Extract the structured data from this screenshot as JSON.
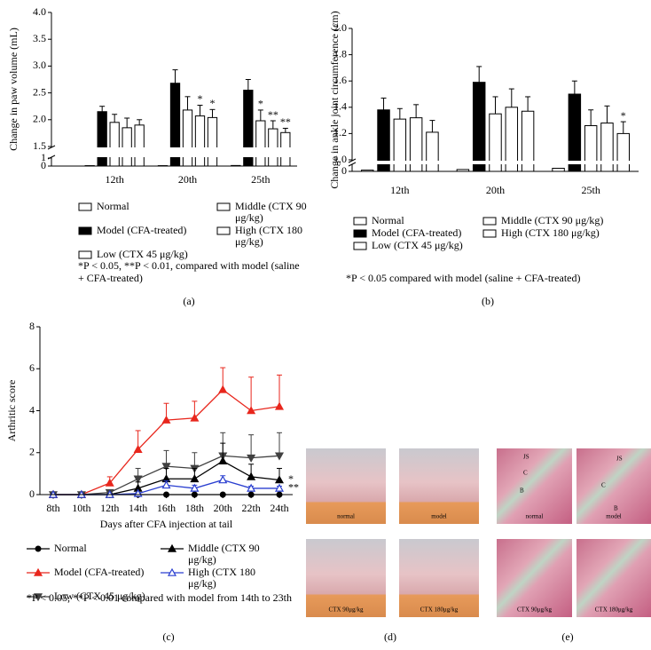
{
  "chart_data": [
    {
      "type": "bar",
      "panel": "(a)",
      "y_label": "Change in paw volume (mL)",
      "categories": [
        "12th",
        "20th",
        "25th"
      ],
      "series": [
        {
          "name": "Normal",
          "color": "#ffffff",
          "values": [
            0.05,
            0.05,
            0.07
          ]
        },
        {
          "name": "Model (CFA-treated)",
          "color": "#000000",
          "values": [
            2.15,
            2.68,
            2.55
          ],
          "errors": [
            0.1,
            0.25,
            0.2
          ]
        },
        {
          "name": "Low (CTX 45 μg/kg)",
          "color": "#ffffff",
          "values": [
            1.95,
            2.18,
            1.98
          ],
          "errors": [
            0.15,
            0.25,
            0.2
          ],
          "significance": [
            null,
            null,
            "*"
          ]
        },
        {
          "name": "Middle (CTX 90 μg/kg)",
          "color": "#ffffff",
          "values": [
            1.85,
            2.07,
            1.83
          ],
          "errors": [
            0.18,
            0.2,
            0.15
          ],
          "significance": [
            null,
            "*",
            "**"
          ]
        },
        {
          "name": "High (CTX 180 μg/kg)",
          "color": "#ffffff",
          "values": [
            1.9,
            2.04,
            1.76
          ],
          "errors": [
            0.1,
            0.15,
            0.08
          ],
          "significance": [
            null,
            "*",
            "**"
          ]
        }
      ],
      "ylim": [
        0,
        4
      ],
      "ybreak": [
        1,
        1.5
      ],
      "yticks": [
        0,
        1,
        1.5,
        {
          "value": 2,
          "label": "2.0"
        },
        2.5,
        {
          "value": 3,
          "label": "3.0"
        },
        3.5,
        {
          "value": 4,
          "label": "4.0"
        }
      ],
      "footnote": "*P < 0.05, **P < 0.01, compared with model (saline + CFA-treated)"
    },
    {
      "type": "bar",
      "panel": "(b)",
      "y_label": "Change in ankle joint circumference (cm)",
      "categories": [
        "12th",
        "20th",
        "25th"
      ],
      "series": [
        {
          "name": "Normal",
          "color": "#ffffff",
          "values": [
            0.02,
            0.03,
            0.05
          ]
        },
        {
          "name": "Model (CFA-treated)",
          "color": "#000000",
          "values": [
            1.38,
            1.59,
            1.5
          ],
          "errors": [
            0.09,
            0.12,
            0.1
          ]
        },
        {
          "name": "Low (CTX 45 μg/kg)",
          "color": "#ffffff",
          "values": [
            1.31,
            1.35,
            1.26
          ],
          "errors": [
            0.08,
            0.13,
            0.12
          ]
        },
        {
          "name": "Middle (CTX 90 μg/kg)",
          "color": "#ffffff",
          "values": [
            1.32,
            1.4,
            1.28
          ],
          "errors": [
            0.1,
            0.14,
            0.13
          ]
        },
        {
          "name": "High (CTX 180 μg/kg)",
          "color": "#ffffff",
          "values": [
            1.21,
            1.37,
            1.2
          ],
          "errors": [
            0.09,
            0.11,
            0.09
          ],
          "significance": [
            null,
            null,
            "*"
          ]
        }
      ],
      "ylim": [
        0,
        2
      ],
      "ybreak": [
        0.1,
        1
      ],
      "yticks": [
        0,
        {
          "value": 1,
          "label": "1.0"
        },
        1.2,
        1.4,
        1.6,
        1.8,
        {
          "value": 2,
          "label": "2.0"
        }
      ],
      "footnote": "*P < 0.05 compared with model (saline + CFA-treated)"
    },
    {
      "type": "line",
      "panel": "(c)",
      "y_label": "Arthritic score",
      "x_label": "Days after CFA injection at tail",
      "categories": [
        "8th",
        "10th",
        "12th",
        "14th",
        "16th",
        "18th",
        "20th",
        "22th",
        "24th"
      ],
      "series": [
        {
          "name": "Normal",
          "color": "#000000",
          "marker": "circle",
          "values": [
            0,
            0,
            0,
            0,
            0,
            0,
            0,
            0,
            0
          ]
        },
        {
          "name": "Model (CFA-treated)",
          "color": "#e8261c",
          "marker": "triangle-up",
          "values": [
            0,
            0,
            0.55,
            2.15,
            3.55,
            3.65,
            5.0,
            4.0,
            4.2
          ],
          "errors": [
            null,
            null,
            0.3,
            0.9,
            0.8,
            0.8,
            1.05,
            1.6,
            1.5
          ]
        },
        {
          "name": "Low (CTX 45 μg/kg)",
          "color": "#404040",
          "marker": "triangle-down",
          "values": [
            0,
            0,
            0.1,
            0.75,
            1.35,
            1.25,
            1.85,
            1.75,
            1.85
          ],
          "errors": [
            null,
            null,
            0.1,
            0.5,
            0.75,
            0.75,
            1.1,
            1.1,
            1.1
          ]
        },
        {
          "name": "Middle (CTX 90 μg/kg)",
          "color": "#000000",
          "marker": "triangle-up",
          "values": [
            0,
            0,
            0,
            0.3,
            0.75,
            0.75,
            1.6,
            0.85,
            0.7
          ],
          "errors": [
            null,
            null,
            null,
            0.3,
            0.5,
            0.5,
            0.85,
            0.6,
            0.55
          ],
          "significance": [
            null,
            null,
            null,
            null,
            null,
            null,
            null,
            null,
            "*"
          ]
        },
        {
          "name": "High (CTX 180 μg/kg)",
          "color": "#2a3fd0",
          "marker": "triangle-open",
          "values": [
            0,
            0,
            0,
            0.05,
            0.45,
            0.3,
            0.7,
            0.3,
            0.3
          ],
          "errors": [
            null,
            null,
            null,
            0.05,
            0.2,
            0.15,
            0.2,
            0.1,
            0.1
          ],
          "significance": [
            null,
            null,
            null,
            null,
            null,
            null,
            null,
            null,
            "**"
          ]
        }
      ],
      "ylim": [
        0,
        8
      ],
      "yticks": [
        0,
        2,
        4,
        6,
        8
      ],
      "footnote": "*P < 0.05, **P < 0.01 compared with model from 14th to 23th"
    }
  ],
  "photo_panels": [
    {
      "panel": "(d)",
      "kind": "paws",
      "captions": [
        "normal",
        "model",
        "CTX 90μg/kg",
        "CTX 180μg/kg"
      ]
    },
    {
      "panel": "(e)",
      "kind": "histology",
      "captions": [
        "normal",
        "model",
        "CTX 90μg/kg",
        "CTX 180μg/kg"
      ],
      "labels": [
        "JS",
        "C",
        "B",
        "JS",
        "C",
        "B"
      ]
    }
  ]
}
